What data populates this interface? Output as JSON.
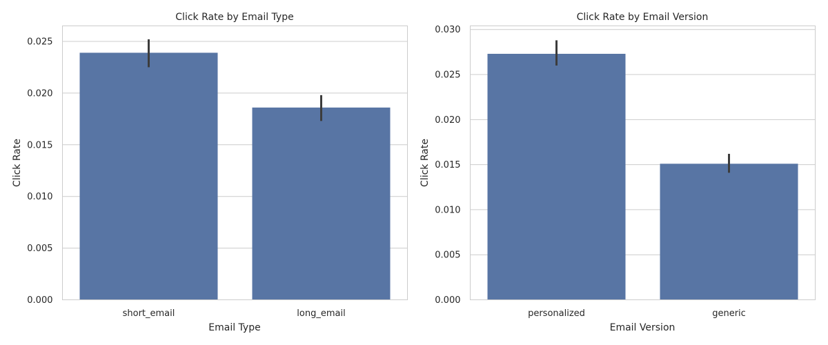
{
  "colors": {
    "bar": "#5875a4",
    "grid": "#cccccc",
    "errorbar": "#3c3c3c",
    "text": "#262626"
  },
  "chart_data": [
    {
      "type": "bar",
      "title": "Click Rate by Email Type",
      "xlabel": "Email Type",
      "ylabel": "Click Rate",
      "categories": [
        "short_email",
        "long_email"
      ],
      "values": [
        0.0239,
        0.0186
      ],
      "error_low": [
        0.0225,
        0.0173
      ],
      "error_high": [
        0.0252,
        0.0198
      ],
      "ylim": [
        0,
        0.0265
      ],
      "yticks": [
        0.0,
        0.005,
        0.01,
        0.015,
        0.02,
        0.025
      ],
      "ytick_labels": [
        "0.000",
        "0.005",
        "0.010",
        "0.015",
        "0.020",
        "0.025"
      ],
      "grid": true,
      "grid_axis": "y"
    },
    {
      "type": "bar",
      "title": "Click Rate by Email Version",
      "xlabel": "Email Version",
      "ylabel": "Click Rate",
      "categories": [
        "personalized",
        "generic"
      ],
      "values": [
        0.0273,
        0.0151
      ],
      "error_low": [
        0.026,
        0.0141
      ],
      "error_high": [
        0.0288,
        0.0162
      ],
      "ylim": [
        0,
        0.0304
      ],
      "yticks": [
        0.0,
        0.005,
        0.01,
        0.015,
        0.02,
        0.025,
        0.03
      ],
      "ytick_labels": [
        "0.000",
        "0.005",
        "0.010",
        "0.015",
        "0.020",
        "0.025",
        "0.030"
      ],
      "grid": true,
      "grid_axis": "y"
    }
  ]
}
